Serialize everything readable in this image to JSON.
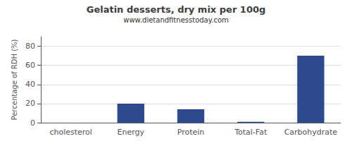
{
  "chart_data": {
    "type": "bar",
    "title": "Gelatin desserts, dry mix per 100g",
    "subtitle": "www.dietandfitnesstoday.com",
    "categories": [
      "cholesterol",
      "Energy",
      "Protein",
      "Total-Fat",
      "Carbohydrate"
    ],
    "values": [
      0,
      20,
      14,
      1,
      70
    ],
    "color": "#2e4a8e",
    "ylabel": "Percentage of RDH (%)",
    "ylim": [
      0,
      90
    ],
    "yticks": [
      0,
      20,
      40,
      60,
      80
    ],
    "grid": true
  }
}
